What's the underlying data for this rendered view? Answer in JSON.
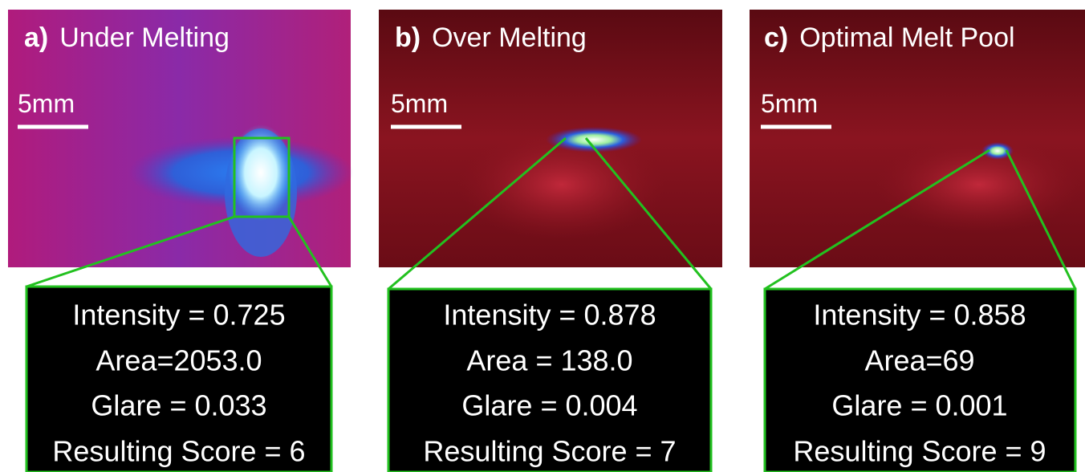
{
  "panels": [
    {
      "label": "a)",
      "title": "Under Melting",
      "scale": "5mm",
      "metrics": [
        "Intensity = 0.725",
        "Area=2053.0",
        "Glare = 0.033",
        "Resulting Score = 6"
      ]
    },
    {
      "label": "b)",
      "title": "Over Melting",
      "scale": "5mm",
      "metrics": [
        "Intensity = 0.878",
        "Area = 138.0",
        "Glare = 0.004",
        "Resulting Score = 7"
      ]
    },
    {
      "label": "c)",
      "title": "Optimal Melt Pool",
      "scale": "5mm",
      "metrics": [
        "Intensity = 0.858",
        "Area=69",
        "Glare = 0.001",
        "Resulting Score = 9"
      ]
    }
  ]
}
